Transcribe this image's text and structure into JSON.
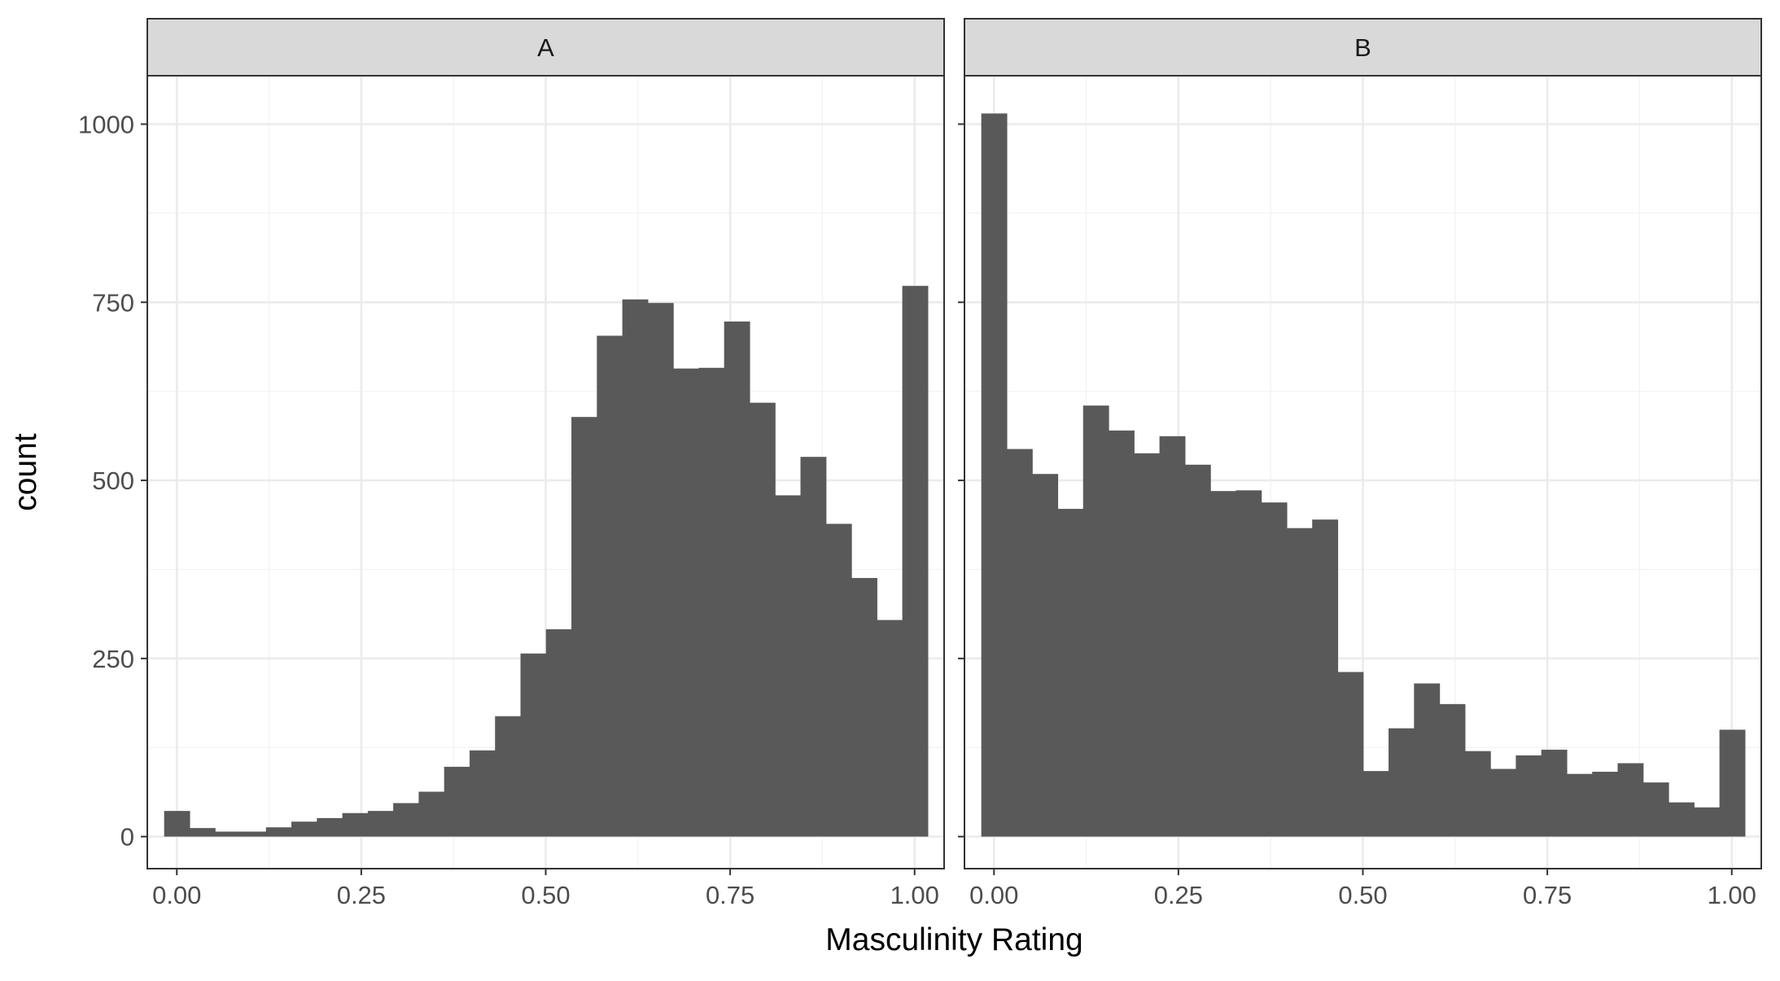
{
  "chart_data": {
    "type": "bar",
    "subtype": "faceted-histogram",
    "xlabel": "Masculinity Rating",
    "ylabel": "count",
    "xlim": [
      -0.04,
      1.04
    ],
    "ylim": [
      -45,
      1068
    ],
    "x_ticks": [
      0,
      0.25,
      0.5,
      0.75,
      1
    ],
    "x_tick_labels": [
      "0.00",
      "0.25",
      "0.50",
      "0.75",
      "1.00"
    ],
    "y_ticks": [
      0,
      250,
      500,
      750,
      1000
    ],
    "y_tick_labels": [
      "0",
      "250",
      "500",
      "750",
      "1000"
    ],
    "bin_width": 0.0345,
    "bins": 30,
    "grid": true,
    "theme": "bw",
    "bar_color": "#595959",
    "facets": [
      {
        "label": "A",
        "bin_start": -0.0172,
        "values": [
          36,
          12,
          7,
          7,
          13,
          21,
          26,
          33,
          36,
          47,
          63,
          98,
          121,
          169,
          257,
          291,
          589,
          703,
          754,
          749,
          657,
          658,
          723,
          609,
          479,
          533,
          439,
          363,
          304,
          773
        ]
      },
      {
        "label": "B",
        "bin_start": -0.0172,
        "values": [
          1015,
          544,
          509,
          460,
          605,
          570,
          538,
          562,
          522,
          485,
          486,
          469,
          433,
          445,
          231,
          92,
          152,
          215,
          186,
          120,
          95,
          114,
          122,
          88,
          91,
          103,
          76,
          48,
          41,
          150
        ]
      }
    ]
  }
}
